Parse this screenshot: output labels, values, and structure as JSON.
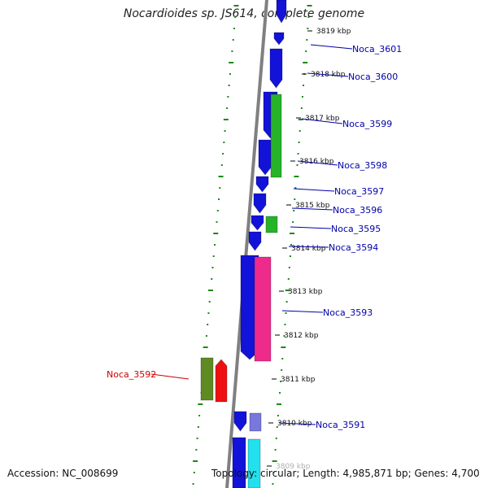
{
  "title": "Nocardioides sp. JS614, complete genome",
  "footer": {
    "accession": "Accession: NC_008699",
    "summary": "Topology: circular; Length: 4,985,871 bp; Genes: 4,700"
  },
  "colors": {
    "forward_gene": "#1212d8",
    "other_gene": "#27b327",
    "pink_gene": "#ee2b8a",
    "red_gene": "#ee1010",
    "olive_gene": "#5f8a22",
    "lavender_gene": "#7777dd",
    "cyan_gene": "#22e0ee",
    "backbone": "#808080",
    "dots": "#1a8a1a",
    "label_blue": "#0000aa",
    "label_red": "#cc0000"
  },
  "kbp_ticks": [
    "3819 kbp",
    "3818 kbp",
    "3817 kbp",
    "3816 kbp",
    "3815 kbp",
    "3814 kbp",
    "3813 kbp",
    "3812 kbp",
    "3811 kbp",
    "3810 kbp",
    "3809 kbp"
  ],
  "gene_labels": [
    "Noca_3601",
    "Noca_3600",
    "Noca_3599",
    "Noca_3598",
    "Noca_3597",
    "Noca_3596",
    "Noca_3595",
    "Noca_3594",
    "Noca_3593",
    "Noca_3592",
    "Noca_3591"
  ]
}
